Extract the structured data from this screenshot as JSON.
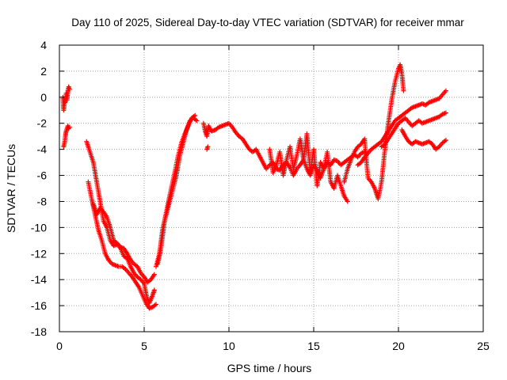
{
  "chart_data": {
    "type": "scatter",
    "title": "Day 110 of 2025, Sidereal Day-to-day VTEC variation (SDTVAR) for receiver mmar",
    "xlabel": "GPS time / hours",
    "ylabel": "SDTVAR / TECUs",
    "xlim": [
      0,
      25
    ],
    "ylim": [
      -18,
      4
    ],
    "xticks": [
      0,
      5,
      10,
      15,
      20,
      25
    ],
    "yticks": [
      -18,
      -16,
      -14,
      -12,
      -10,
      -8,
      -6,
      -4,
      -2,
      0,
      2,
      4
    ],
    "grid": true,
    "marker": "plus",
    "color": "#ff0000",
    "series": [
      {
        "x": [
          0.2,
          0.25,
          0.3,
          0.35,
          0.4,
          0.45,
          0.5,
          0.55,
          0.6
        ],
        "y": [
          0.0,
          -1.0,
          -0.5,
          -0.3,
          0.3,
          -0.2,
          0.5,
          0.8,
          0.6
        ]
      },
      {
        "x": [
          0.25,
          0.3,
          0.35,
          0.4,
          0.45,
          0.5,
          0.55,
          0.6
        ],
        "y": [
          -3.8,
          -3.5,
          -3.0,
          -2.6,
          -2.4,
          -2.2,
          -2.4,
          -2.3
        ]
      },
      {
        "x": [
          1.6,
          1.8,
          2.0,
          2.2,
          2.4,
          2.6,
          2.8,
          3.0,
          3.2,
          3.4,
          3.6,
          3.8,
          4.0,
          4.2,
          4.4,
          4.6,
          4.8,
          5.0,
          5.1,
          5.2,
          5.3,
          5.4,
          5.5,
          5.6
        ],
        "y": [
          -3.4,
          -4.2,
          -5.0,
          -6.5,
          -8.0,
          -9.5,
          -10.0,
          -11.0,
          -11.4,
          -11.3,
          -11.6,
          -12.2,
          -12.4,
          -13.0,
          -13.5,
          -13.8,
          -14.0,
          -14.3,
          -15.0,
          -15.5,
          -15.8,
          -15.5,
          -15.2,
          -14.8
        ]
      },
      {
        "x": [
          1.7,
          1.9,
          2.1,
          2.3,
          2.5,
          2.7,
          2.9,
          3.1,
          3.3,
          3.5,
          3.7,
          3.9,
          4.1,
          4.3,
          4.5,
          4.7,
          4.9,
          5.1,
          5.3,
          5.5,
          5.7
        ],
        "y": [
          -6.5,
          -7.8,
          -9.0,
          -10.2,
          -11.0,
          -12.0,
          -12.5,
          -12.8,
          -12.9,
          -13.0,
          -13.0,
          -13.2,
          -13.5,
          -13.8,
          -14.2,
          -14.6,
          -15.2,
          -15.8,
          -16.2,
          -16.1,
          -15.9
        ]
      },
      {
        "x": [
          2.0,
          2.2,
          2.4,
          2.6,
          2.8,
          3.0,
          3.2,
          3.4,
          3.6,
          3.8,
          4.0,
          4.2,
          4.4,
          4.6,
          4.8,
          5.0,
          5.2,
          5.4,
          5.6
        ],
        "y": [
          -8.2,
          -9.0,
          -8.5,
          -8.8,
          -9.2,
          -10.0,
          -11.0,
          -11.2,
          -11.5,
          -11.6,
          -12.0,
          -12.5,
          -12.8,
          -13.0,
          -13.5,
          -13.8,
          -14.2,
          -14.0,
          -13.6
        ]
      },
      {
        "x": [
          5.7,
          5.9,
          6.1,
          6.3,
          6.5,
          6.7,
          6.9,
          7.1,
          7.3,
          7.5,
          7.7,
          7.9,
          8.1
        ],
        "y": [
          -13.0,
          -12.0,
          -10.0,
          -9.0,
          -8.0,
          -7.0,
          -6.0,
          -4.5,
          -3.5,
          -2.5,
          -1.8,
          -1.6,
          -1.8
        ]
      },
      {
        "x": [
          5.8,
          6.0,
          6.2,
          6.4,
          6.6,
          6.8,
          7.0,
          7.2,
          7.4,
          7.6,
          7.8,
          8.0
        ],
        "y": [
          -12.8,
          -11.5,
          -9.5,
          -8.2,
          -7.0,
          -5.8,
          -4.5,
          -3.5,
          -2.8,
          -2.2,
          -1.6,
          -1.4
        ]
      },
      {
        "x": [
          8.5,
          8.6,
          8.7,
          8.8,
          8.9,
          9.0,
          9.2,
          9.4,
          9.6,
          9.8,
          10.0,
          10.2,
          10.4,
          10.6
        ],
        "y": [
          -2.0,
          -2.6,
          -3.0,
          -2.2,
          -2.5,
          -2.6,
          -2.5,
          -2.3,
          -2.2,
          -2.1,
          -2.0,
          -2.3,
          -2.7,
          -3.0
        ]
      },
      {
        "x": [
          8.7,
          8.75
        ],
        "y": [
          -4.0,
          -3.8
        ]
      },
      {
        "x": [
          10.6,
          10.8,
          11.0,
          11.2,
          11.4,
          11.6,
          11.8,
          12.0,
          12.2,
          12.4,
          12.6,
          12.8,
          13.0,
          13.2,
          13.4,
          13.6,
          13.8,
          14.0,
          14.2,
          14.4,
          14.6,
          14.8,
          15.0,
          15.2,
          15.4,
          15.6,
          15.8,
          16.0,
          16.2,
          16.4,
          16.6,
          16.8,
          17.0,
          17.2,
          17.4,
          17.6,
          17.8,
          18.0
        ],
        "y": [
          -3.0,
          -3.2,
          -3.6,
          -4.0,
          -4.2,
          -4.0,
          -4.5,
          -5.0,
          -5.5,
          -5.2,
          -5.0,
          -5.5,
          -5.6,
          -5.2,
          -5.0,
          -5.4,
          -6.0,
          -5.5,
          -5.2,
          -4.8,
          -5.5,
          -6.0,
          -5.2,
          -5.6,
          -6.2,
          -5.5,
          -5.0,
          -5.2,
          -4.8,
          -4.9,
          -5.2,
          -5.0,
          -4.8,
          -4.6,
          -4.4,
          -4.6,
          -4.3,
          -4.2
        ]
      },
      {
        "x": [
          12.4,
          12.6,
          12.8,
          13.0,
          13.2,
          13.4,
          13.6,
          13.8,
          14.0,
          14.2,
          14.4,
          14.6,
          14.8,
          15.0,
          15.2,
          15.4,
          15.6,
          15.8,
          16.0,
          16.2,
          16.4,
          16.6,
          16.8,
          17.0
        ],
        "y": [
          -4.0,
          -5.8,
          -5.2,
          -4.2,
          -6.0,
          -4.8,
          -3.8,
          -5.5,
          -4.5,
          -3.2,
          -4.8,
          -2.8,
          -5.8,
          -4.0,
          -6.8,
          -5.0,
          -5.5,
          -4.2,
          -6.5,
          -7.0,
          -6.0,
          -6.8,
          -7.6,
          -8.0
        ]
      },
      {
        "x": [
          16.8,
          17.0,
          17.2,
          17.4,
          17.6,
          17.8,
          18.0,
          18.2,
          18.4,
          18.6,
          18.8,
          19.0,
          19.2,
          19.4,
          19.6,
          19.8,
          20.0,
          20.1,
          20.2,
          20.3
        ],
        "y": [
          -6.5,
          -5.5,
          -4.8,
          -4.2,
          -3.8,
          -3.6,
          -3.2,
          -6.2,
          -6.5,
          -7.0,
          -7.8,
          -6.5,
          -4.0,
          -2.0,
          -0.2,
          1.2,
          2.2,
          2.5,
          1.8,
          0.5
        ]
      },
      {
        "x": [
          17.6,
          17.8,
          18.0,
          18.2,
          18.4,
          18.6,
          18.8,
          19.0,
          19.2,
          19.4,
          19.6,
          19.8,
          20.0,
          20.2,
          20.4,
          20.6,
          20.8,
          21.0,
          21.2,
          21.4,
          21.6,
          21.8,
          22.0,
          22.2,
          22.4,
          22.6,
          22.8
        ],
        "y": [
          -5.2,
          -5.0,
          -4.6,
          -4.3,
          -4.0,
          -3.8,
          -3.6,
          -3.4,
          -3.0,
          -2.6,
          -2.2,
          -1.8,
          -1.6,
          -1.4,
          -1.2,
          -1.0,
          -0.8,
          -0.7,
          -0.6,
          -0.5,
          -0.6,
          -0.4,
          -0.3,
          -0.2,
          -0.1,
          0.2,
          0.5
        ]
      },
      {
        "x": [
          19.0,
          19.2,
          19.4,
          19.6,
          19.8,
          20.0,
          20.2,
          20.4,
          20.6,
          20.8,
          21.0,
          21.2,
          21.4,
          21.6,
          21.8,
          22.0,
          22.2,
          22.4,
          22.6,
          22.8
        ],
        "y": [
          -3.8,
          -3.6,
          -3.2,
          -2.8,
          -2.4,
          -2.0,
          -1.8,
          -1.6,
          -1.9,
          -2.2,
          -2.0,
          -1.8,
          -2.0,
          -1.9,
          -1.8,
          -1.7,
          -1.6,
          -1.5,
          -1.3,
          -1.2
        ]
      },
      {
        "x": [
          20.2,
          20.4,
          20.6,
          20.8,
          21.0,
          21.2,
          21.4,
          21.6,
          21.8,
          22.0,
          22.2,
          22.4,
          22.6,
          22.8
        ],
        "y": [
          -2.5,
          -3.0,
          -3.4,
          -3.6,
          -3.4,
          -3.5,
          -3.6,
          -3.5,
          -3.4,
          -3.6,
          -4.0,
          -3.8,
          -3.5,
          -3.3
        ]
      }
    ]
  }
}
